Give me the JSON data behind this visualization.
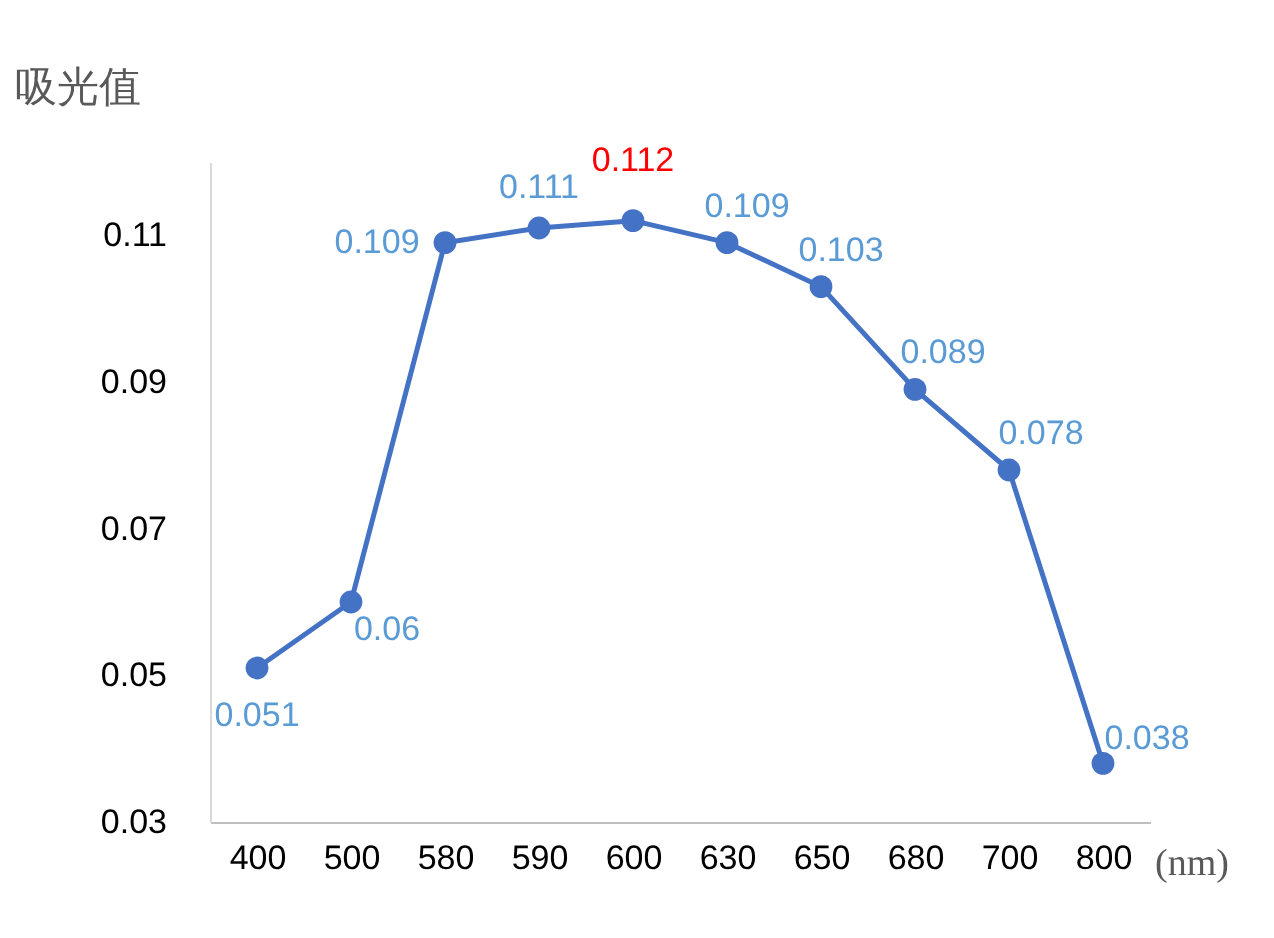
{
  "chart_data": {
    "type": "line",
    "ylabel": "吸光值",
    "xlabel": "(nm)",
    "categories": [
      "400",
      "500",
      "580",
      "590",
      "600",
      "630",
      "650",
      "680",
      "700",
      "800"
    ],
    "series": [
      {
        "color": "#4472c4",
        "values": [
          0.051,
          0.06,
          0.109,
          0.111,
          0.112,
          0.109,
          0.103,
          0.089,
          0.078,
          0.038
        ],
        "value_labels": [
          "0.051",
          "0.06",
          "0.109",
          "0.111",
          null,
          "0.109",
          "0.103",
          "0.089",
          "0.078",
          "0.038"
        ]
      }
    ],
    "annotations": [
      {
        "text": "0.112",
        "x": "600",
        "y": 0.112
      }
    ],
    "ylim": [
      0.03,
      0.12
    ],
    "yticks": [
      0.03,
      0.05,
      0.07,
      0.09,
      0.11
    ],
    "grid": false,
    "legend": false,
    "marker": "circle",
    "line_style": "solid"
  }
}
